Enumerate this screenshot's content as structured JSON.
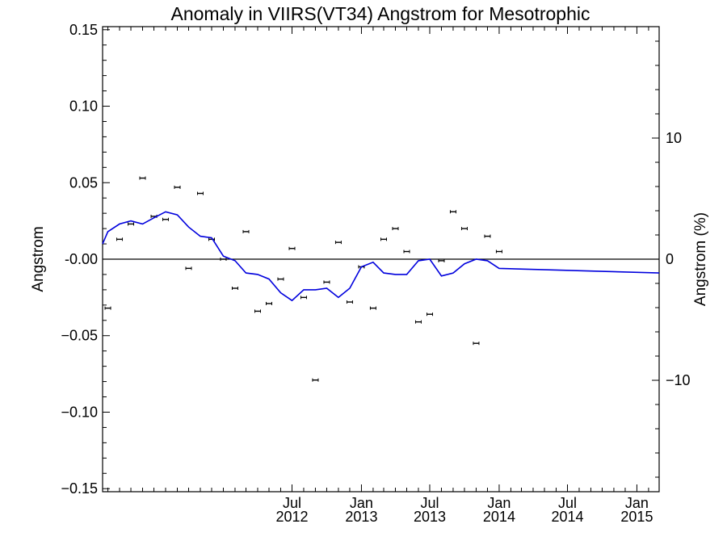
{
  "chart_data": {
    "type": "scatter",
    "title": "Anomaly in VIIRS(VT34) Angstrom for Mesotrophic",
    "ylabel": "Angstrom",
    "y2label": "Angstrom (%)",
    "xlabel": "",
    "x_range": [
      "2011-02-15",
      "2015-03-01"
    ],
    "ylim": [
      -0.152,
      0.152
    ],
    "y2lim": [
      -19.2,
      19.2
    ],
    "y_ticks": [
      {
        "value": 0.15,
        "label": "0.15"
      },
      {
        "value": 0.1,
        "label": "0.10"
      },
      {
        "value": 0.05,
        "label": "0.05"
      },
      {
        "value": 0.0,
        "label": "-0.00"
      },
      {
        "value": -0.05,
        "label": "−0.05"
      },
      {
        "value": -0.1,
        "label": "−0.10"
      },
      {
        "value": -0.15,
        "label": "−0.15"
      }
    ],
    "y2_ticks": [
      {
        "value": 10,
        "label": "10"
      },
      {
        "value": 0,
        "label": "0"
      },
      {
        "value": -10,
        "label": "−10"
      }
    ],
    "x_ticks": [
      {
        "date": "2012-07-01",
        "month": "Jul",
        "year": "2012"
      },
      {
        "date": "2013-01-01",
        "month": "Jan",
        "year": "2013"
      },
      {
        "date": "2013-07-01",
        "month": "Jul",
        "year": "2013"
      },
      {
        "date": "2014-01-01",
        "month": "Jan",
        "year": "2014"
      },
      {
        "date": "2014-07-01",
        "month": "Jul",
        "year": "2014"
      },
      {
        "date": "2015-01-01",
        "month": "Jan",
        "year": "2015"
      }
    ],
    "zero_line": 0,
    "series": [
      {
        "kind": "points",
        "color": "#000000",
        "points": [
          {
            "x": "2011-03-01",
            "y": -0.032
          },
          {
            "x": "2011-04-01",
            "y": 0.013
          },
          {
            "x": "2011-05-01",
            "y": 0.023
          },
          {
            "x": "2011-06-01",
            "y": 0.053
          },
          {
            "x": "2011-07-01",
            "y": 0.028
          },
          {
            "x": "2011-08-01",
            "y": 0.026
          },
          {
            "x": "2011-09-01",
            "y": 0.047
          },
          {
            "x": "2011-10-01",
            "y": -0.006
          },
          {
            "x": "2011-11-01",
            "y": 0.043
          },
          {
            "x": "2011-12-01",
            "y": 0.013
          },
          {
            "x": "2012-01-01",
            "y": 0.0
          },
          {
            "x": "2012-02-01",
            "y": -0.019
          },
          {
            "x": "2012-03-01",
            "y": 0.018
          },
          {
            "x": "2012-04-01",
            "y": -0.034
          },
          {
            "x": "2012-05-01",
            "y": -0.029
          },
          {
            "x": "2012-06-01",
            "y": -0.013
          },
          {
            "x": "2012-07-01",
            "y": 0.007
          },
          {
            "x": "2012-08-01",
            "y": -0.025
          },
          {
            "x": "2012-09-01",
            "y": -0.079
          },
          {
            "x": "2012-10-01",
            "y": -0.015
          },
          {
            "x": "2012-11-01",
            "y": 0.011
          },
          {
            "x": "2012-12-01",
            "y": -0.028
          },
          {
            "x": "2013-01-01",
            "y": -0.005
          },
          {
            "x": "2013-02-01",
            "y": -0.032
          },
          {
            "x": "2013-03-01",
            "y": 0.013
          },
          {
            "x": "2013-04-01",
            "y": 0.02
          },
          {
            "x": "2013-05-01",
            "y": 0.005
          },
          {
            "x": "2013-06-01",
            "y": -0.041
          },
          {
            "x": "2013-07-01",
            "y": -0.036
          },
          {
            "x": "2013-08-01",
            "y": -0.001
          },
          {
            "x": "2013-09-01",
            "y": 0.031
          },
          {
            "x": "2013-10-01",
            "y": 0.02
          },
          {
            "x": "2013-11-01",
            "y": -0.055
          },
          {
            "x": "2013-12-01",
            "y": 0.015
          },
          {
            "x": "2014-01-01",
            "y": 0.005
          }
        ]
      },
      {
        "kind": "line",
        "color": "#0000dd",
        "points": [
          {
            "x": "2011-02-15",
            "y": 0.01
          },
          {
            "x": "2011-03-01",
            "y": 0.018
          },
          {
            "x": "2011-04-01",
            "y": 0.023
          },
          {
            "x": "2011-05-01",
            "y": 0.025
          },
          {
            "x": "2011-06-01",
            "y": 0.023
          },
          {
            "x": "2011-07-01",
            "y": 0.027
          },
          {
            "x": "2011-08-01",
            "y": 0.031
          },
          {
            "x": "2011-09-01",
            "y": 0.029
          },
          {
            "x": "2011-10-01",
            "y": 0.021
          },
          {
            "x": "2011-11-01",
            "y": 0.015
          },
          {
            "x": "2011-12-01",
            "y": 0.014
          },
          {
            "x": "2012-01-01",
            "y": 0.002
          },
          {
            "x": "2012-02-01",
            "y": -0.001
          },
          {
            "x": "2012-03-01",
            "y": -0.009
          },
          {
            "x": "2012-04-01",
            "y": -0.01
          },
          {
            "x": "2012-05-01",
            "y": -0.013
          },
          {
            "x": "2012-06-01",
            "y": -0.022
          },
          {
            "x": "2012-07-01",
            "y": -0.027
          },
          {
            "x": "2012-08-01",
            "y": -0.02
          },
          {
            "x": "2012-09-01",
            "y": -0.02
          },
          {
            "x": "2012-10-01",
            "y": -0.019
          },
          {
            "x": "2012-11-01",
            "y": -0.025
          },
          {
            "x": "2012-12-01",
            "y": -0.019
          },
          {
            "x": "2013-01-01",
            "y": -0.005
          },
          {
            "x": "2013-02-01",
            "y": -0.002
          },
          {
            "x": "2013-03-01",
            "y": -0.009
          },
          {
            "x": "2013-04-01",
            "y": -0.01
          },
          {
            "x": "2013-05-01",
            "y": -0.01
          },
          {
            "x": "2013-06-01",
            "y": -0.001
          },
          {
            "x": "2013-07-01",
            "y": 0.0
          },
          {
            "x": "2013-08-01",
            "y": -0.011
          },
          {
            "x": "2013-09-01",
            "y": -0.009
          },
          {
            "x": "2013-10-01",
            "y": -0.003
          },
          {
            "x": "2013-11-01",
            "y": 0.0
          },
          {
            "x": "2013-12-01",
            "y": -0.001
          },
          {
            "x": "2014-01-01",
            "y": -0.006
          },
          {
            "x": "2015-03-01",
            "y": -0.009
          }
        ]
      }
    ],
    "grid": false,
    "legend": "none"
  }
}
